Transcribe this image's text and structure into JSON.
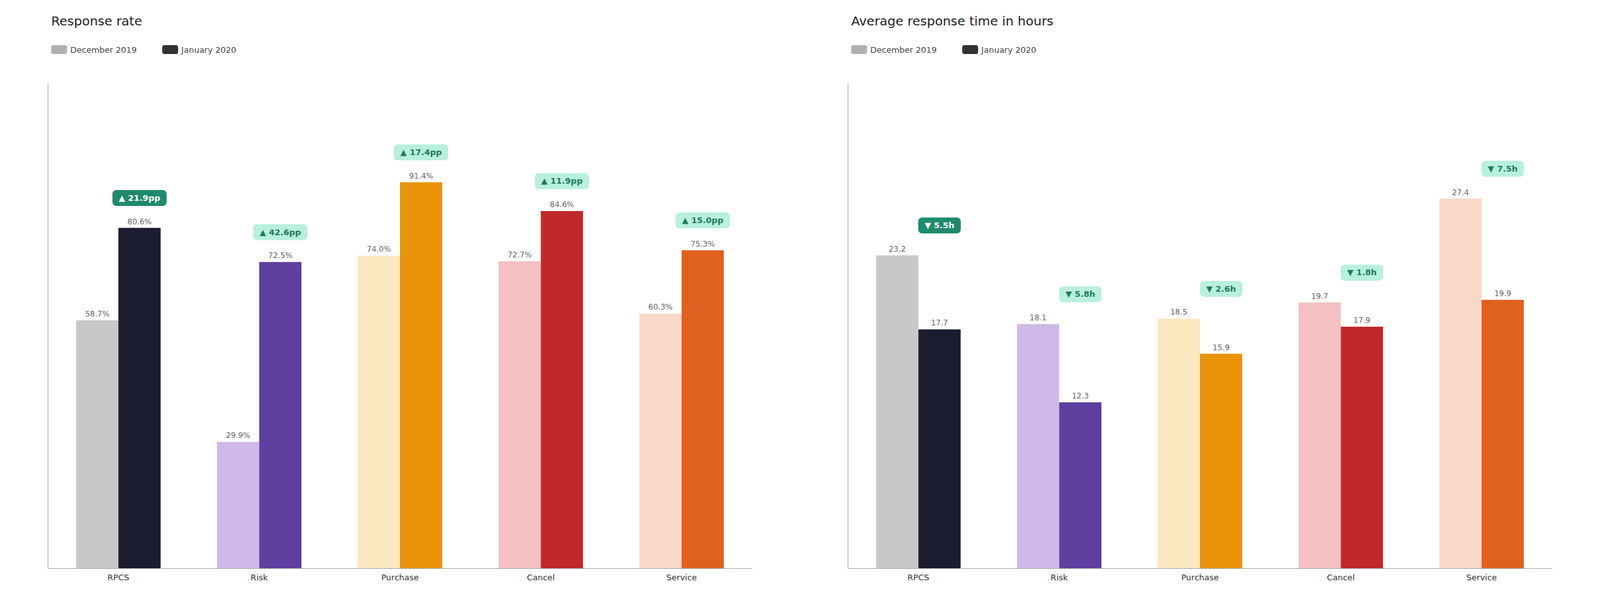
{
  "chart_data": [
    {
      "type": "bar",
      "title": "Response rate",
      "categories": [
        "RPCS",
        "Risk",
        "Purchase",
        "Cancel",
        "Service"
      ],
      "series": [
        {
          "name": "December 2019",
          "color": "#b0b0b0",
          "colors": [
            "#c8c8c8",
            "#d0b8e8",
            "#fce8c0",
            "#f4c0c0",
            "#fad8c8"
          ],
          "values": [
            58.7,
            29.9,
            74.0,
            72.7,
            60.3
          ],
          "value_labels": [
            "58.7%",
            "29.9%",
            "74.0%",
            "72.7%",
            "60.3%"
          ]
        },
        {
          "name": "January 2020",
          "color": "#333333",
          "colors": [
            "#1c1c30",
            "#5e3fa0",
            "#e8930a",
            "#c0292b",
            "#e06020"
          ],
          "values": [
            80.6,
            72.5,
            91.4,
            84.6,
            75.3
          ],
          "value_labels": [
            "80.6%",
            "72.5%",
            "91.4%",
            "84.6%",
            "75.3%"
          ]
        }
      ],
      "ylim": [
        0,
        115
      ],
      "grid": false,
      "legend": "upper left",
      "data_labels": true,
      "tick_labels": "x",
      "annotations": [
        {
          "text": "▲ 21.9pp",
          "x": "RPCS",
          "color": "#1e8a6e",
          "text_color": "#ffffff"
        },
        {
          "text": "▲ 42.6pp",
          "x": "Risk",
          "color": "#b8f0dc",
          "text_color": "#1e7a5e"
        },
        {
          "text": "▲ 17.4pp",
          "x": "Purchase",
          "color": "#b8f0dc",
          "text_color": "#1e7a5e"
        },
        {
          "text": "▲ 11.9pp",
          "x": "Cancel",
          "color": "#b8f0dc",
          "text_color": "#1e7a5e"
        },
        {
          "text": "▲ 15.0pp",
          "x": "Service",
          "color": "#b8f0dc",
          "text_color": "#1e7a5e"
        }
      ]
    },
    {
      "type": "bar",
      "title": "Average response time in hours",
      "categories": [
        "RPCS",
        "Risk",
        "Purchase",
        "Cancel",
        "Service"
      ],
      "series": [
        {
          "name": "December 2019",
          "color": "#b0b0b0",
          "colors": [
            "#c8c8c8",
            "#d0b8e8",
            "#fce8c0",
            "#f4c0c0",
            "#fad8c8"
          ],
          "values": [
            23.2,
            18.1,
            18.5,
            19.7,
            27.4
          ]
        },
        {
          "name": "January 2020",
          "color": "#333333",
          "colors": [
            "#1c1c30",
            "#5e3fa0",
            "#e8930a",
            "#c0292b",
            "#e06020"
          ],
          "values": [
            17.7,
            12.3,
            15.9,
            17.9,
            19.9
          ]
        }
      ],
      "ylim": [
        0,
        36
      ],
      "grid": false,
      "legend": "upper left",
      "data_labels": true,
      "tick_labels": "x",
      "annotations": [
        {
          "text": "▼ 5.5h",
          "x": "RPCS",
          "color": "#1e8a6e",
          "text_color": "#ffffff"
        },
        {
          "text": "▼ 5.8h",
          "x": "Risk",
          "color": "#b8f0dc",
          "text_color": "#1e7a5e"
        },
        {
          "text": "▼ 2.6h",
          "x": "Purchase",
          "color": "#b8f0dc",
          "text_color": "#1e7a5e"
        },
        {
          "text": "▼ 1.8h",
          "x": "Cancel",
          "color": "#b8f0dc",
          "text_color": "#1e7a5e"
        },
        {
          "text": "▼ 7.5h",
          "x": "Service",
          "color": "#b8f0dc",
          "text_color": "#1e7a5e"
        }
      ]
    }
  ]
}
